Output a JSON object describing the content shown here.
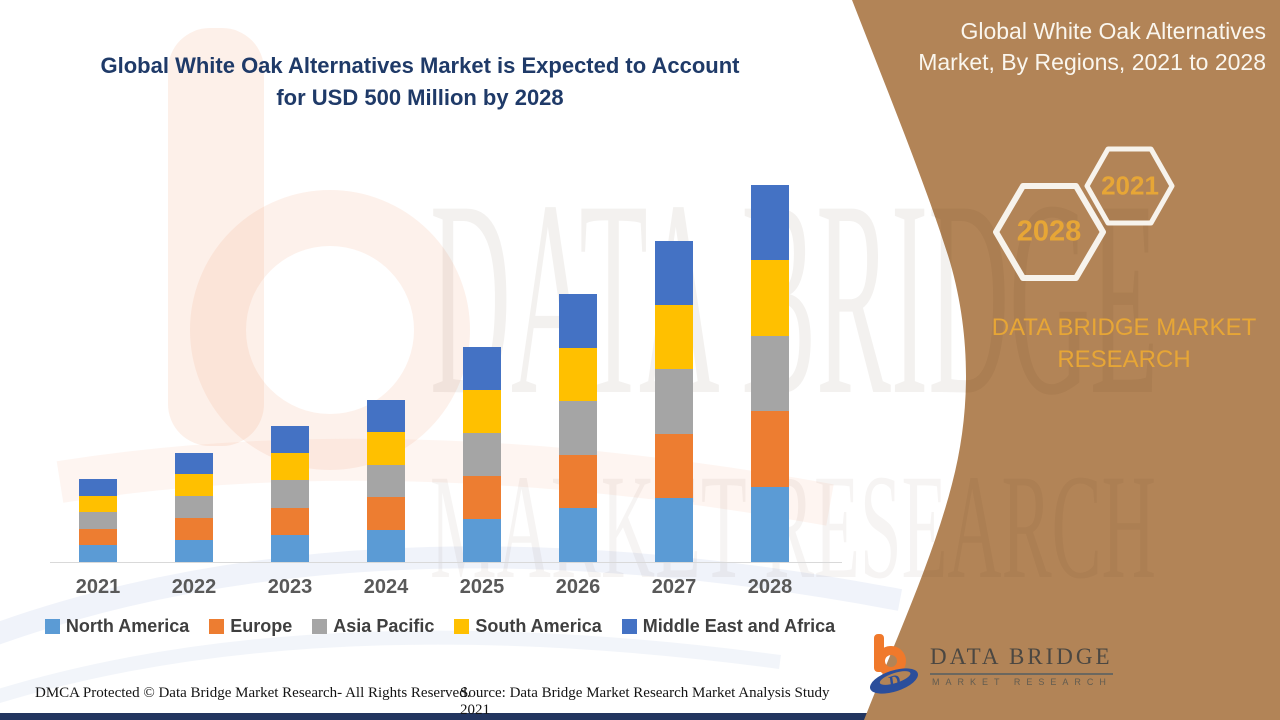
{
  "page": {
    "title_line1": "Global White Oak Alternatives Market is Expected to Account",
    "title_line2": "for USD 500 Million by 2028"
  },
  "side_panel": {
    "heading_line1": "Global White Oak Alternatives",
    "heading_line2": "Market, By Regions, 2021 to 2028",
    "hexagons": [
      {
        "label": "2028"
      },
      {
        "label": "2021"
      }
    ],
    "brand_line1": "DATA BRIDGE MARKET",
    "brand_line2": "RESEARCH",
    "colors": {
      "panel": "#b28457",
      "accent_gold": "#e7a636",
      "hex_outline": "#f7f3ec"
    }
  },
  "logo": {
    "name": "DATA BRIDGE",
    "subtext": "MARKET RESEARCH"
  },
  "watermark": {
    "line1": "DATA BRIDGE",
    "line2": "MARKET RESEARCH"
  },
  "footer": {
    "left": "DMCA Protected © Data Bridge Market Research- All Rights Reserved.",
    "right": "Source: Data Bridge Market Research Market Analysis Study 2021"
  },
  "chart_data": {
    "type": "bar",
    "subtype": "stacked-vertical",
    "title": "Global White Oak Alternatives Market is Expected to Account for USD 500 Million by 2028",
    "unit": "USD Million",
    "categories": [
      "2021",
      "2022",
      "2023",
      "2024",
      "2025",
      "2026",
      "2027",
      "2028"
    ],
    "series": [
      {
        "name": "North America",
        "color": "#5B9BD5",
        "values": [
          22,
          29,
          36,
          43,
          57,
          71,
          85,
          100
        ]
      },
      {
        "name": "Europe",
        "color": "#ED7D31",
        "values": [
          22,
          29,
          36,
          43,
          57,
          71,
          85,
          100
        ]
      },
      {
        "name": "Asia Pacific",
        "color": "#A5A5A5",
        "values": [
          22,
          29,
          36,
          43,
          57,
          71,
          85,
          100
        ]
      },
      {
        "name": "South America",
        "color": "#FFC000",
        "values": [
          22,
          29,
          36,
          43,
          57,
          71,
          85,
          100
        ]
      },
      {
        "name": "Middle East and Africa",
        "color": "#4472C4",
        "values": [
          22,
          29,
          36,
          43,
          57,
          71,
          85,
          100
        ]
      }
    ],
    "totals": [
      110,
      145,
      180,
      215,
      285,
      355,
      425,
      500
    ],
    "ylim": [
      0,
      500
    ],
    "gridlines": false,
    "axis_labels_shown": false,
    "legend_position": "bottom"
  }
}
